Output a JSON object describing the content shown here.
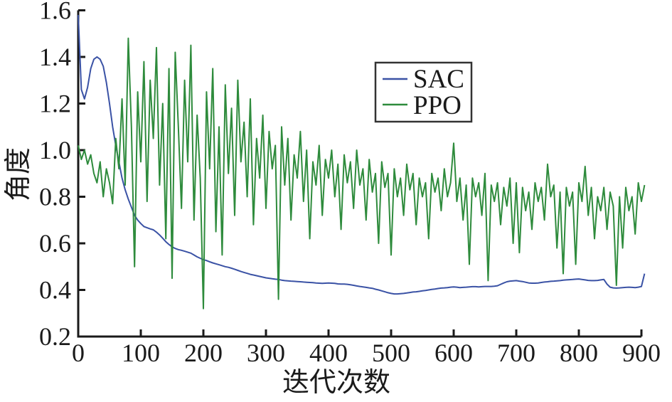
{
  "chart_data": {
    "type": "line",
    "title": "",
    "xlabel": "迭代次数",
    "ylabel": "角度",
    "xlim": [
      0,
      910
    ],
    "ylim": [
      0.2,
      1.6
    ],
    "grid": false,
    "legend_position": "upper-center-right boxed",
    "axis_color": "#1a1a1a",
    "x_ticks": [
      0,
      100,
      200,
      300,
      400,
      500,
      600,
      700,
      800,
      900
    ],
    "x_tick_labels": [
      "0",
      "100",
      "200",
      "300",
      "400",
      "500",
      "600",
      "700",
      "800",
      "900"
    ],
    "y_ticks": [
      0.2,
      0.4,
      0.6,
      0.8,
      1.0,
      1.2,
      1.4,
      1.6
    ],
    "y_tick_labels": [
      "0.2",
      "0.4",
      "0.6",
      "0.8",
      "1.0",
      "1.2",
      "1.4",
      "1.6"
    ],
    "x_start": 0,
    "x_step": 5,
    "series": [
      {
        "name": "SAC",
        "color": "#3A52A5",
        "values": [
          1.58,
          1.26,
          1.22,
          1.27,
          1.35,
          1.39,
          1.4,
          1.39,
          1.36,
          1.29,
          1.2,
          1.1,
          1.02,
          0.95,
          0.88,
          0.83,
          0.79,
          0.755,
          0.72,
          0.7,
          0.685,
          0.672,
          0.667,
          0.662,
          0.658,
          0.648,
          0.636,
          0.622,
          0.607,
          0.595,
          0.585,
          0.578,
          0.573,
          0.57,
          0.566,
          0.562,
          0.558,
          0.55,
          0.542,
          0.536,
          0.53,
          0.526,
          0.521,
          0.516,
          0.512,
          0.508,
          0.504,
          0.5,
          0.497,
          0.493,
          0.489,
          0.484,
          0.479,
          0.475,
          0.471,
          0.467,
          0.464,
          0.461,
          0.458,
          0.455,
          0.452,
          0.45,
          0.448,
          0.446,
          0.445,
          0.442,
          0.44,
          0.439,
          0.438,
          0.437,
          0.436,
          0.435,
          0.434,
          0.433,
          0.432,
          0.431,
          0.43,
          0.429,
          0.428,
          0.429,
          0.43,
          0.429,
          0.428,
          0.426,
          0.425,
          0.425,
          0.424,
          0.422,
          0.42,
          0.417,
          0.415,
          0.413,
          0.411,
          0.409,
          0.407,
          0.403,
          0.4,
          0.396,
          0.392,
          0.388,
          0.385,
          0.383,
          0.383,
          0.384,
          0.385,
          0.387,
          0.389,
          0.391,
          0.392,
          0.394,
          0.396,
          0.398,
          0.4,
          0.402,
          0.404,
          0.406,
          0.408,
          0.409,
          0.41,
          0.412,
          0.413,
          0.412,
          0.41,
          0.411,
          0.412,
          0.413,
          0.414,
          0.414,
          0.413,
          0.414,
          0.415,
          0.415,
          0.415,
          0.416,
          0.418,
          0.424,
          0.43,
          0.435,
          0.438,
          0.439,
          0.44,
          0.438,
          0.436,
          0.433,
          0.43,
          0.429,
          0.429,
          0.43,
          0.432,
          0.434,
          0.435,
          0.437,
          0.438,
          0.439,
          0.44,
          0.442,
          0.443,
          0.444,
          0.445,
          0.446,
          0.447,
          0.445,
          0.443,
          0.441,
          0.44,
          0.44,
          0.441,
          0.443,
          0.445,
          0.425,
          0.412,
          0.409,
          0.408,
          0.409,
          0.41,
          0.411,
          0.412,
          0.411,
          0.41,
          0.412,
          0.415,
          0.47
        ]
      },
      {
        "name": "PPO",
        "color": "#2E8B3C",
        "values": [
          1.02,
          0.96,
          1.0,
          0.94,
          0.98,
          0.9,
          0.86,
          0.95,
          0.8,
          0.92,
          0.86,
          0.77,
          1.05,
          0.92,
          1.22,
          0.85,
          1.48,
          1.1,
          0.5,
          1.25,
          0.95,
          1.38,
          0.78,
          1.3,
          1.05,
          1.44,
          0.85,
          1.2,
          0.62,
          1.35,
          0.45,
          1.42,
          1.1,
          0.75,
          1.3,
          0.95,
          1.45,
          0.7,
          1.15,
          0.88,
          0.32,
          1.25,
          0.92,
          1.35,
          0.65,
          1.1,
          0.55,
          1.28,
          0.9,
          1.18,
          0.72,
          1.3,
          0.95,
          1.12,
          0.8,
          1.22,
          0.68,
          1.05,
          0.88,
          1.15,
          0.75,
          1.08,
          0.92,
          1.02,
          0.36,
          1.1,
          0.85,
          1.05,
          0.7,
          0.98,
          0.88,
          1.08,
          0.78,
          1.0,
          0.62,
          0.95,
          0.85,
          1.02,
          0.72,
          0.96,
          0.88,
          1.0,
          0.8,
          0.94,
          0.66,
          0.98,
          0.86,
          0.95,
          0.75,
          1.0,
          0.85,
          0.92,
          0.7,
          0.96,
          0.82,
          0.9,
          0.6,
          0.95,
          0.84,
          0.9,
          0.55,
          0.92,
          0.8,
          0.88,
          0.72,
          0.94,
          0.83,
          0.9,
          0.68,
          0.88,
          0.8,
          0.86,
          0.62,
          0.9,
          0.82,
          0.88,
          0.74,
          0.92,
          0.8,
          0.86,
          1.03,
          0.78,
          0.88,
          0.7,
          0.85,
          0.51,
          0.88,
          0.8,
          0.86,
          0.72,
          0.9,
          0.44,
          0.85,
          0.78,
          0.86,
          0.68,
          0.84,
          0.76,
          0.88,
          0.6,
          0.86,
          0.56,
          0.84,
          0.74,
          0.82,
          0.66,
          0.86,
          0.78,
          0.84,
          0.7,
          0.94,
          0.8,
          0.85,
          0.58,
          0.82,
          0.47,
          0.84,
          0.76,
          0.82,
          0.51,
          0.86,
          0.78,
          0.93,
          0.72,
          0.84,
          0.62,
          0.8,
          0.74,
          0.84,
          0.66,
          0.82,
          0.76,
          0.42,
          0.8,
          0.58,
          0.84,
          0.74,
          0.8,
          0.64,
          0.86,
          0.78,
          0.85
        ]
      }
    ]
  }
}
